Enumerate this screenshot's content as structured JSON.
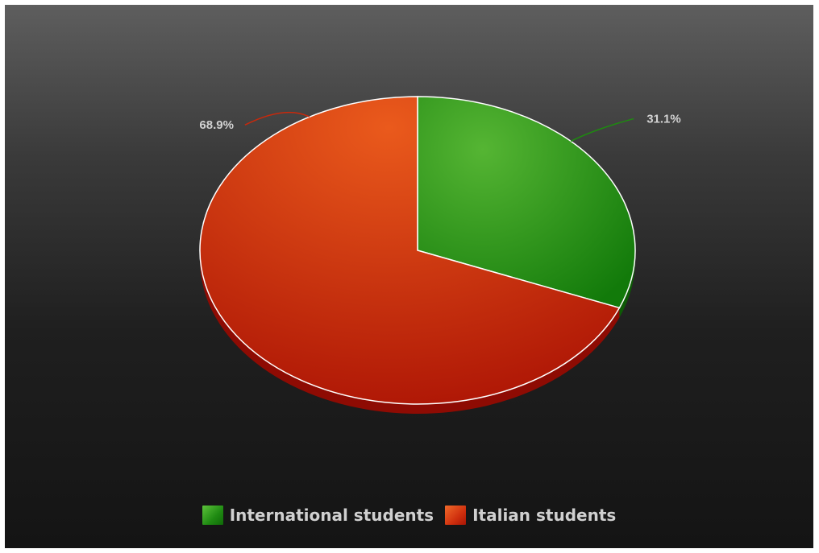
{
  "chart_data": {
    "type": "pie",
    "title": "",
    "slices": [
      {
        "name": "International students",
        "value": 31.1,
        "label": "31.1%",
        "color": "#2e8b1e"
      },
      {
        "name": "Italian students",
        "value": 68.9,
        "label": "68.9%",
        "color": "#c8290c"
      }
    ],
    "start_angle": "12 o'clock",
    "direction": "clockwise",
    "style": "3d-tilted",
    "legend_position": "bottom-center",
    "background": "dark-gradient"
  },
  "legend": {
    "items": [
      {
        "label": "International students",
        "color": "#2e8b1e",
        "icon": "legend-swatch"
      },
      {
        "label": "Italian students",
        "color": "#c8290c",
        "icon": "legend-swatch"
      }
    ]
  }
}
